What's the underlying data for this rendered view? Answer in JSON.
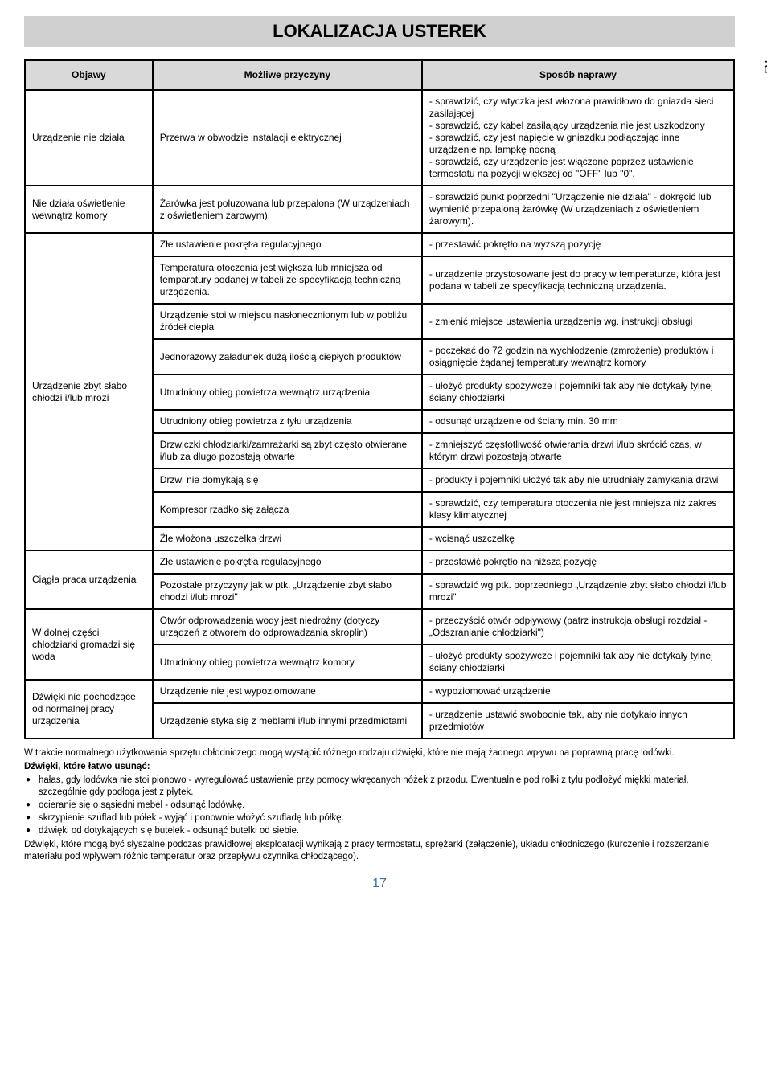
{
  "title": "LOKALIZACJA USTEREK",
  "side_tab": "PL",
  "page_number": "17",
  "table": {
    "headers": [
      "Objawy",
      "Możliwe przyczyny",
      "Sposób naprawy"
    ],
    "groups": [
      {
        "objawy": "Urządzenie nie działa",
        "rows": [
          {
            "cause": "Przerwa w obwodzie instalacji elektrycznej",
            "fix": "- sprawdzić, czy wtyczka jest włożona prawidłowo do gniazda sieci zasilającej\n- sprawdzić, czy kabel zasilający urządzenia nie jest uszkodzony\n- sprawdzić, czy jest napięcie w gniazdku podłączając inne urządzenie np. lampkę nocną\n- sprawdzić, czy urządzenie jest włączone poprzez ustawienie termostatu na pozycji większej od \"OFF\" lub \"0\"."
          }
        ]
      },
      {
        "objawy": "Nie działa oświetlenie wewnątrz komory",
        "rows": [
          {
            "cause": "Żarówka jest poluzowana lub przepalona (W urządzeniach z oświetleniem żarowym).",
            "fix": "- sprawdzić punkt poprzedni \"Urządzenie nie działa\" - dokręcić lub wymienić przepaloną żarówkę (W urządzeniach z oświetleniem żarowym)."
          }
        ]
      },
      {
        "objawy": "Urządzenie zbyt słabo chłodzi i/lub mrozi",
        "rows": [
          {
            "cause": "Złe ustawienie pokrętła regulacyjnego",
            "fix": "- przestawić pokrętło na wyższą pozycję"
          },
          {
            "cause": "Temperatura otoczenia jest większa lub mniejsza od temparatury podanej w tabeli ze specyfikacją techniczną urządzenia.",
            "fix": "- urządzenie przystosowane jest do pracy w temperaturze, która jest podana w tabeli ze specyfikacją techniczną urządzenia."
          },
          {
            "cause": "Urządzenie stoi w miejscu nasłonecznionym lub w pobliżu źródeł ciepła",
            "fix": "- zmienić miejsce ustawienia urządzenia wg. instrukcji obsługi"
          },
          {
            "cause": "Jednorazowy załadunek dużą ilością ciepłych produktów",
            "fix": "- poczekać do 72 godzin na wychłodzenie (zmrożenie) produktów i osiągnięcie żądanej temperatury wewnątrz komory"
          },
          {
            "cause": "Utrudniony obieg powietrza wewnątrz urządzenia",
            "fix": "- ułożyć produkty spożywcze i pojemniki tak aby nie dotykały tylnej ściany chłodziarki"
          },
          {
            "cause": "Utrudniony obieg powietrza z tyłu urządzenia",
            "fix": "- odsunąć urządzenie od ściany min. 30 mm"
          },
          {
            "cause": "Drzwiczki chłodziarki/zamrażarki są zbyt często otwierane i/lub za długo pozostają otwarte",
            "fix": "- zmniejszyć częstotliwość otwierania drzwi i/lub skrócić czas, w którym drzwi pozostają otwarte"
          },
          {
            "cause": "Drzwi nie domykają się",
            "fix": "- produkty i pojemniki ułożyć tak aby nie utrudniały zamykania drzwi"
          },
          {
            "cause": "Kompresor rzadko się załącza",
            "fix": "- sprawdzić, czy temperatura otoczenia nie jest mniejsza niż zakres klasy klimatycznej"
          },
          {
            "cause": "Źle włożona uszczelka drzwi",
            "fix": "- wcisnąć uszczelkę"
          }
        ]
      },
      {
        "objawy": "Ciągła praca urządzenia",
        "rows": [
          {
            "cause": "Złe ustawienie pokrętła regulacyjnego",
            "fix": "- przestawić pokrętło na niższą pozycję"
          },
          {
            "cause": "Pozostałe przyczyny jak w ptk. „Urządzenie zbyt słabo chodzi i/lub mrozi\"",
            "fix": "- sprawdzić wg ptk. poprzedniego „Urządzenie zbyt słabo chłodzi i/lub mrozi\""
          }
        ]
      },
      {
        "objawy": "W dolnej części chłodziarki gromadzi się woda",
        "rows": [
          {
            "cause": "Otwór odprowadzenia wody jest niedrożny (dotyczy urządzeń z otworem do odprowadzania skroplin)",
            "fix": "- przeczyścić otwór odpływowy (patrz instrukcja obsługi rozdział - „Odszranianie chłodziarki\")"
          },
          {
            "cause": "Utrudniony obieg powietrza wewnątrz komory",
            "fix": "- ułożyć produkty spożywcze i pojemniki tak aby nie dotykały tylnej ściany chłodziarki"
          }
        ]
      },
      {
        "objawy": "Dźwięki nie pochodzące od normalnej pracy urządzenia",
        "rows": [
          {
            "cause": "Urządzenie nie jest wypoziomowane",
            "fix": "- wypoziomować urządzenie"
          },
          {
            "cause": "Urządzenie styka się z meblami i/lub innymi przedmiotami",
            "fix": "- urządzenie ustawić swobodnie tak, aby nie dotykało innych przedmiotów"
          }
        ]
      }
    ]
  },
  "footnotes": {
    "p1": "W trakcie normalnego użytkowania sprzętu chłodniczego mogą wystąpić różnego rodzaju dźwięki, które nie mają żadnego wpływu na poprawną pracę lodówki.",
    "heading": "Dźwięki, które łatwo usunąć:",
    "bullets": [
      "hałas, gdy lodówka nie stoi pionowo - wyregulować ustawienie przy pomocy wkręcanych nóżek z przodu. Ewentualnie pod rolki z tyłu podłożyć miękki materiał, szczególnie gdy podłoga jest z płytek.",
      "ocieranie się o sąsiedni mebel - odsunąć lodówkę.",
      "skrzypienie szuflad lub półek - wyjąć i ponownie włożyć szufladę lub półkę.",
      "dźwięki od dotykających się butelek - odsunąć butelki od siebie."
    ],
    "p2": "Dźwięki, które mogą być słyszalne podczas prawidłowej eksploatacji wynikają z pracy termostatu, sprężarki (załączenie), układu chłodniczego (kurczenie i rozszerzanie materiału pod wpływem różnic temperatur oraz przepływu czynnika chłodzącego)."
  }
}
